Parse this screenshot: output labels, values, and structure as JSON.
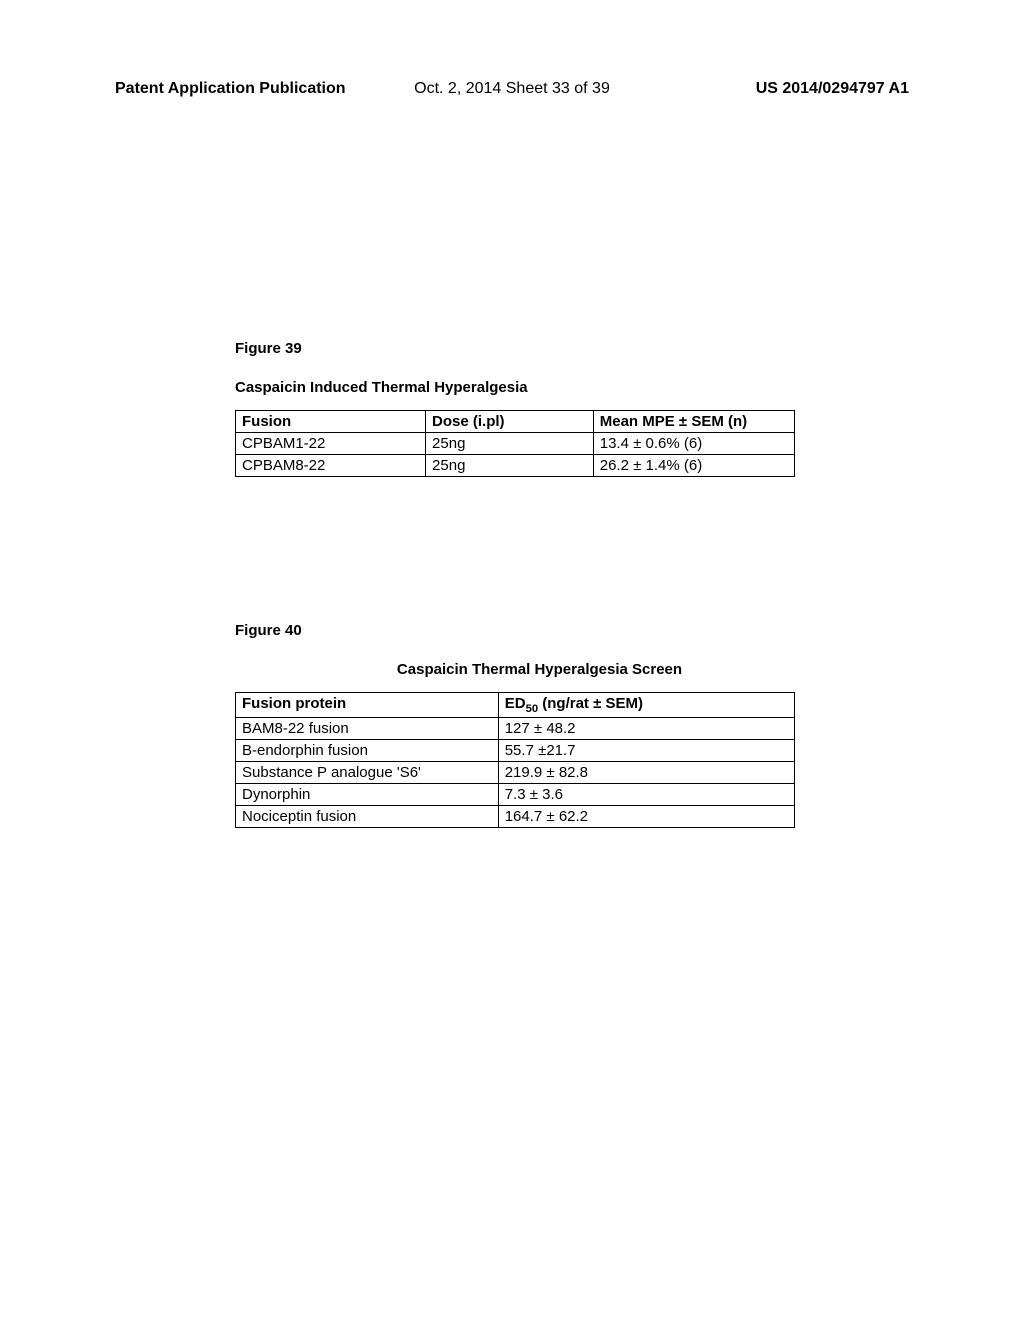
{
  "header": {
    "left": "Patent Application Publication",
    "center": "Oct. 2, 2014  Sheet 33 of 39",
    "right": "US 2014/0294797 A1"
  },
  "figure39": {
    "label": "Figure 39",
    "title": "Caspaicin Induced Thermal Hyperalgesia",
    "columns": [
      "Fusion",
      "Dose (i.pl)",
      "Mean MPE ± SEM (n)"
    ],
    "rows": [
      [
        "CPBAM1-22",
        "25ng",
        "13.4 ± 0.6% (6)"
      ],
      [
        "CPBAM8-22",
        "25ng",
        "26.2 ± 1.4% (6)"
      ]
    ]
  },
  "figure40": {
    "label": "Figure 40",
    "title": "Caspaicin Thermal Hyperalgesia Screen",
    "col1": "Fusion protein",
    "col2_prefix": "ED",
    "col2_sub": "50",
    "col2_suffix": " (ng/rat ± SEM)",
    "rows": [
      [
        "BAM8-22 fusion",
        "127  ± 48.2"
      ],
      [
        "B-endorphin fusion",
        "55.7  ±21.7"
      ],
      [
        "Substance P  analogue 'S6'",
        "219.9  ± 82.8"
      ],
      [
        "Dynorphin",
        "7.3  ± 3.6"
      ],
      [
        "Nociceptin fusion",
        "164.7  ± 62.2"
      ]
    ]
  }
}
